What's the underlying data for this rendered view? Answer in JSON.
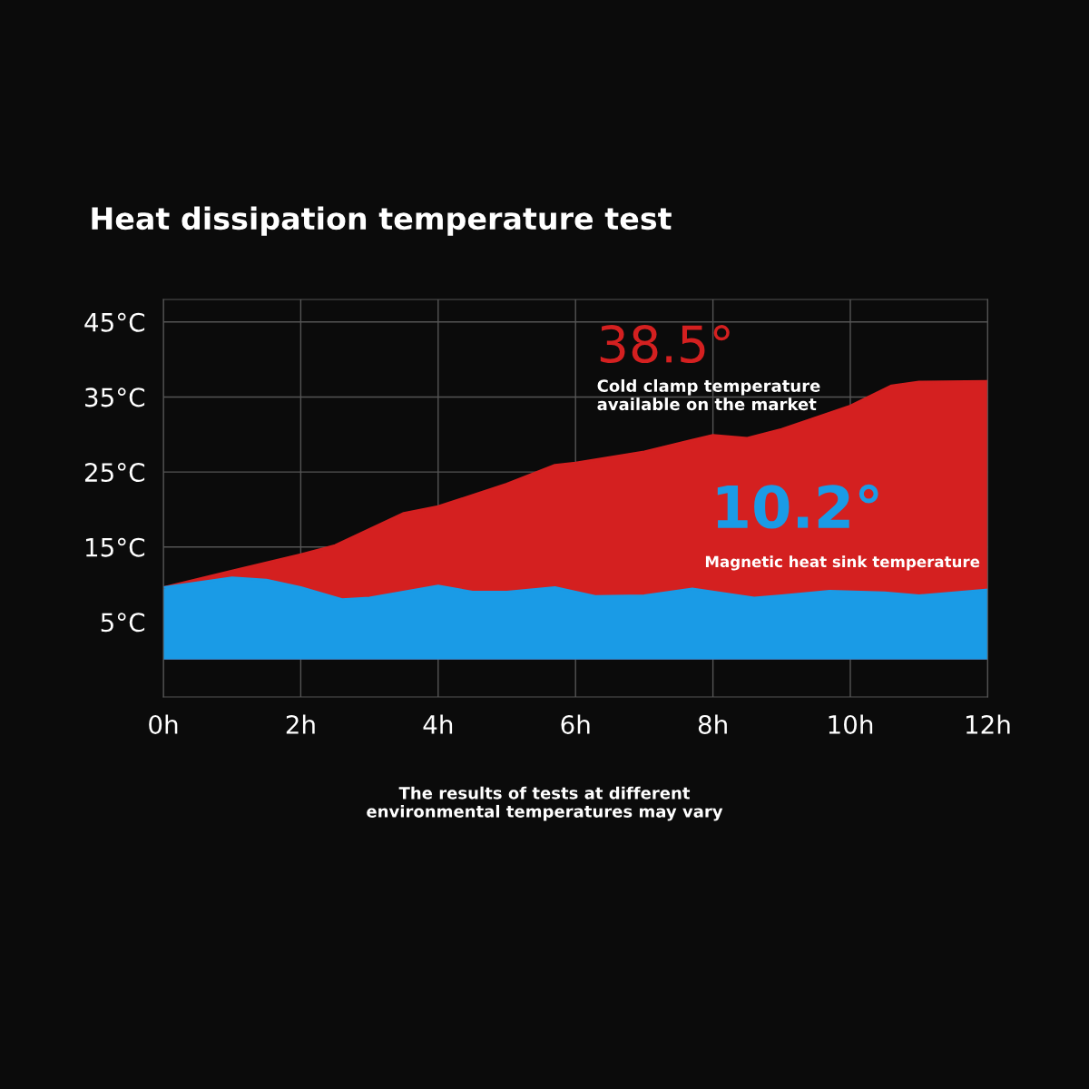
{
  "chart_data": {
    "type": "area",
    "title": "Heat dissipation temperature test",
    "xlim": [
      0,
      12
    ],
    "xticks": [
      {
        "value": 0,
        "label": "0h"
      },
      {
        "value": 2,
        "label": "2h"
      },
      {
        "value": 4,
        "label": "4h"
      },
      {
        "value": 6,
        "label": "6h"
      },
      {
        "value": 8,
        "label": "8h"
      },
      {
        "value": 10,
        "label": "10h"
      },
      {
        "value": 12,
        "label": "12h"
      }
    ],
    "ylim": [
      -5,
      48
    ],
    "yticks": [
      {
        "value": 5,
        "label": "5°C"
      },
      {
        "value": 15,
        "label": "15°C"
      },
      {
        "value": 25,
        "label": "25°C"
      },
      {
        "value": 35,
        "label": "35°C"
      },
      {
        "value": 45,
        "label": "45°C"
      }
    ],
    "grid": true,
    "series": [
      {
        "color": "#d42020",
        "x": [
          0,
          1,
          2,
          2.5,
          3.5,
          4,
          5,
          5.7,
          6,
          7,
          8,
          8.5,
          9,
          10,
          10.6,
          11,
          12
        ],
        "values": [
          9.6,
          11.8,
          14.0,
          15.2,
          19.5,
          20.4,
          23.4,
          25.9,
          26.2,
          27.7,
          29.9,
          29.5,
          30.7,
          33.8,
          36.5,
          37.0,
          37.1
        ]
      },
      {
        "color": "#1a9be6",
        "x": [
          0,
          1,
          1.5,
          2,
          2.6,
          3,
          4,
          4.5,
          5,
          5.7,
          6.3,
          7,
          7.7,
          8.6,
          9,
          9.7,
          10.5,
          11,
          12
        ],
        "values": [
          9.6,
          10.9,
          10.6,
          9.6,
          8.0,
          8.2,
          9.8,
          9.0,
          9.0,
          9.6,
          8.4,
          8.5,
          9.4,
          8.2,
          8.5,
          9.1,
          8.9,
          8.5,
          9.3
        ]
      }
    ],
    "annotations": [
      "38.5°",
      "Cold clamp temperature\navailable on the market",
      "10.2°",
      "Magnetic heat sink temperature",
      "The results of tests at different\nenvironmental temperatures may vary"
    ]
  }
}
